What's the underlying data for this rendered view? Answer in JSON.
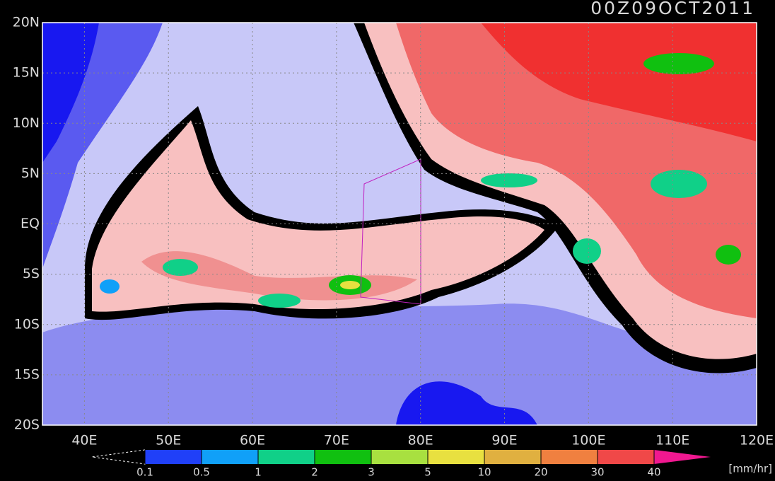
{
  "title": "00Z09OCT2011",
  "lat_labels": [
    "20N",
    "15N",
    "10N",
    "5N",
    "EQ",
    "5S",
    "10S",
    "15S",
    "20S"
  ],
  "lon_labels": [
    "40E",
    "50E",
    "60E",
    "70E",
    "80E",
    "90E",
    "100E",
    "110E",
    "120E"
  ],
  "colorbar": {
    "levels": [
      "0.1",
      "0.5",
      "1",
      "2",
      "3",
      "5",
      "10",
      "20",
      "30",
      "40"
    ],
    "colors": [
      "#2040f8",
      "#10a0f8",
      "#10d088",
      "#10c010",
      "#a8e040",
      "#e8e040",
      "#e0b040",
      "#f08040",
      "#f04848",
      "#f01890"
    ],
    "unit": "[mm/hr]"
  }
}
